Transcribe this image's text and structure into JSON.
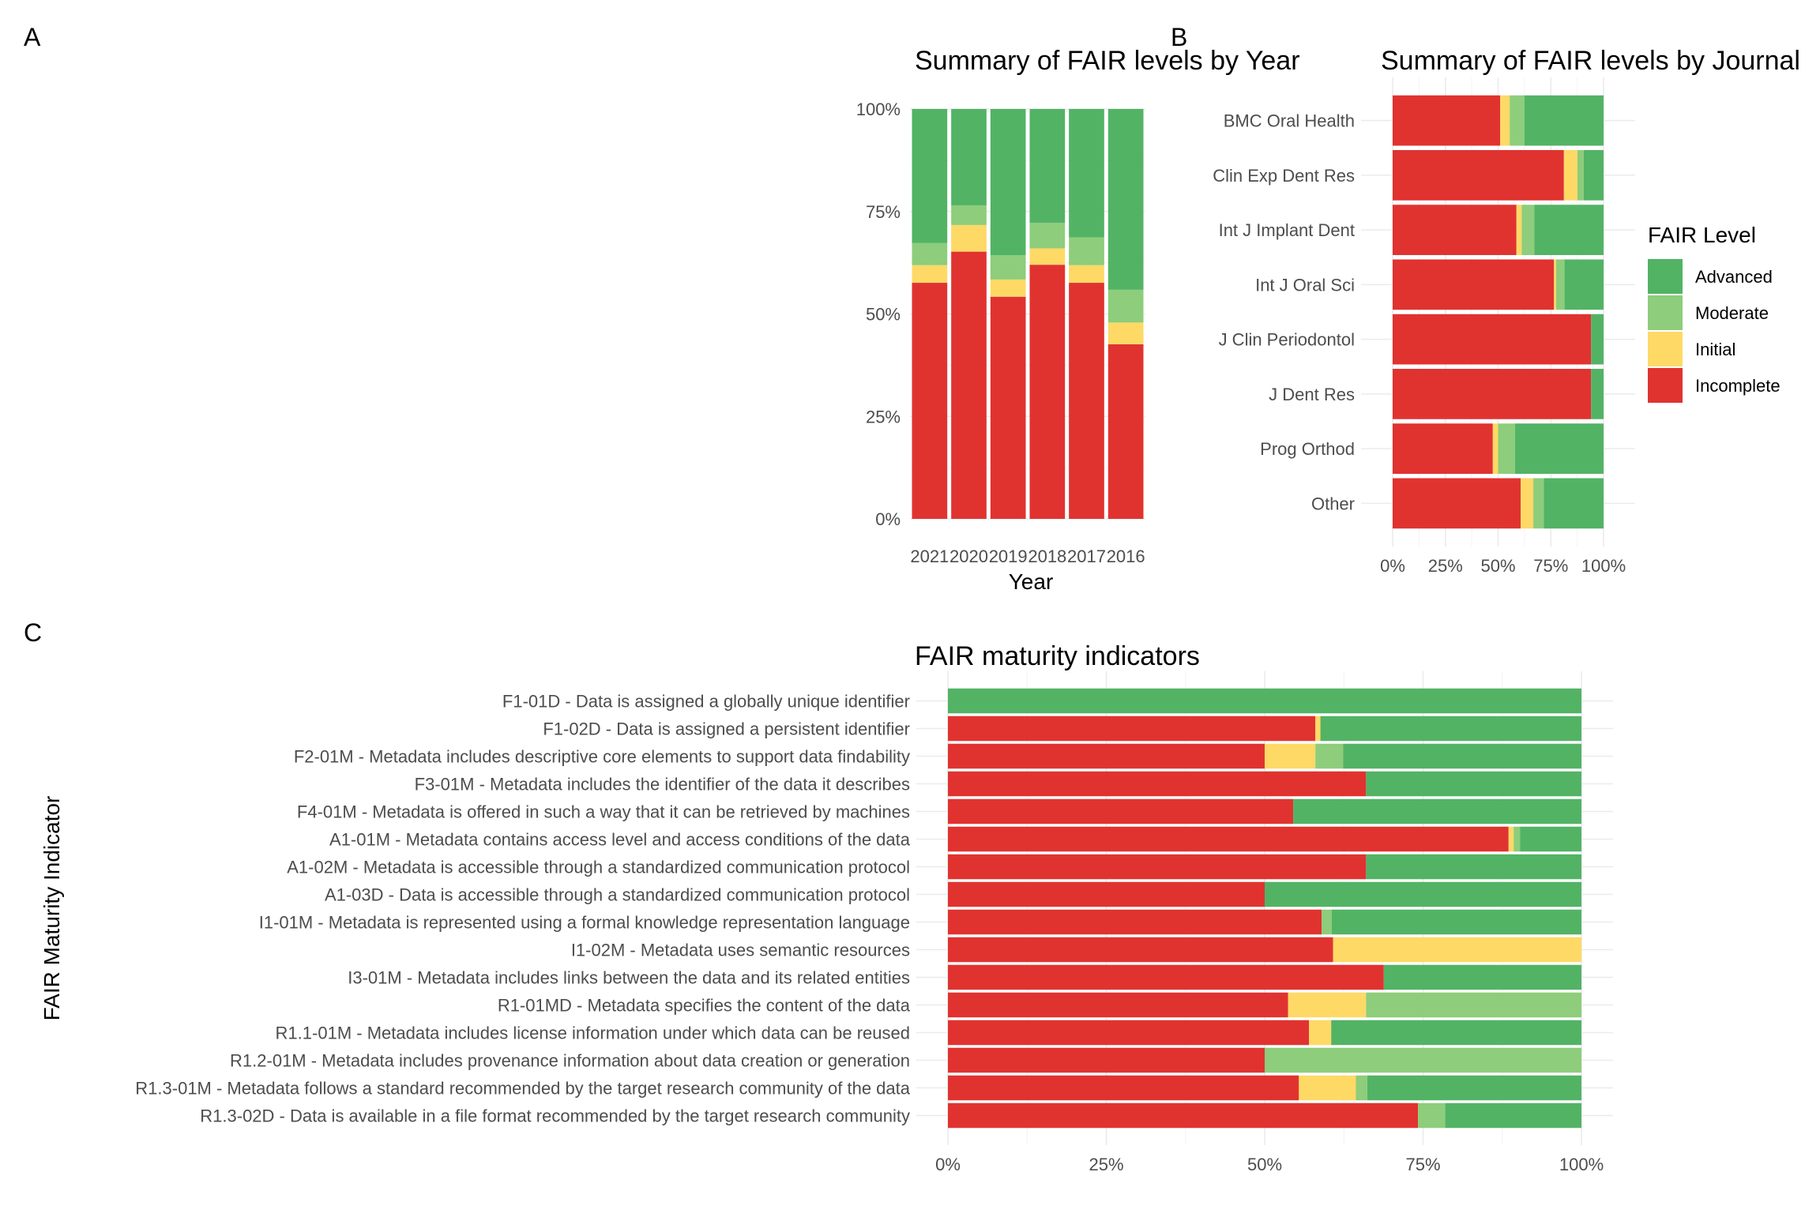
{
  "colors": {
    "Advanced": "#52B365",
    "Moderate": "#8DCD7B",
    "Initial": "#FED966",
    "Incomplete": "#E03330"
  },
  "legend": {
    "title": "FAIR Level",
    "items": [
      "Advanced",
      "Moderate",
      "Initial",
      "Incomplete"
    ]
  },
  "chart_data": [
    {
      "panel": "A",
      "type": "bar",
      "stacked": "percent",
      "orientation": "vertical",
      "title": "Summary of FAIR levels by Year",
      "xlabel": "Year",
      "ylabel": "",
      "categories": [
        "2021",
        "2020",
        "2019",
        "2018",
        "2017",
        "2016"
      ],
      "y_ticks": [
        "0%",
        "25%",
        "50%",
        "75%",
        "100%"
      ],
      "ylim": [
        0,
        1
      ],
      "series": [
        {
          "name": "Incomplete",
          "values": [
            0.576,
            0.652,
            0.542,
            0.62,
            0.576,
            0.426
          ]
        },
        {
          "name": "Initial",
          "values": [
            0.043,
            0.065,
            0.042,
            0.04,
            0.043,
            0.053
          ]
        },
        {
          "name": "Moderate",
          "values": [
            0.054,
            0.048,
            0.059,
            0.062,
            0.068,
            0.08
          ]
        },
        {
          "name": "Advanced",
          "values": [
            0.327,
            0.235,
            0.357,
            0.278,
            0.313,
            0.441
          ]
        }
      ]
    },
    {
      "panel": "B",
      "type": "bar",
      "stacked": "percent",
      "orientation": "horizontal",
      "title": "Summary of FAIR levels by Journal",
      "xlabel": "",
      "ylabel": "",
      "categories": [
        "BMC Oral Health",
        "Clin Exp Dent Res",
        "Int J Implant Dent",
        "Int J Oral Sci",
        "J Clin Periodontol",
        "J Dent Res",
        "Prog Orthod",
        "Other"
      ],
      "x_ticks": [
        "0%",
        "25%",
        "50%",
        "75%",
        "100%"
      ],
      "xlim": [
        0,
        1
      ],
      "series": [
        {
          "name": "Incomplete",
          "values": [
            0.51,
            0.812,
            0.587,
            0.765,
            0.941,
            0.941,
            0.475,
            0.607
          ]
        },
        {
          "name": "Initial",
          "values": [
            0.045,
            0.064,
            0.025,
            0.01,
            0.0,
            0.0,
            0.025,
            0.06
          ]
        },
        {
          "name": "Moderate",
          "values": [
            0.07,
            0.03,
            0.06,
            0.04,
            0.0,
            0.0,
            0.08,
            0.05
          ]
        },
        {
          "name": "Advanced",
          "values": [
            0.375,
            0.094,
            0.328,
            0.185,
            0.059,
            0.059,
            0.42,
            0.283
          ]
        }
      ]
    },
    {
      "panel": "C",
      "type": "bar",
      "stacked": "percent",
      "orientation": "horizontal",
      "title": "FAIR maturity indicators",
      "xlabel": "",
      "ylabel": "FAIR Maturity Indicator",
      "categories": [
        "F1-01D - Data is assigned a globally unique identifier",
        "F1-02D - Data is assigned a persistent identifier",
        "F2-01M - Metadata includes descriptive core elements to support data findability",
        "F3-01M - Metadata includes the identifier of the data it describes",
        "F4-01M - Metadata is offered in such a way that it can be retrieved by machines",
        "A1-01M - Metadata contains access level and access conditions of the data",
        "A1-02M - Metadata is accessible through a standardized communication protocol",
        "A1-03D - Data is accessible through a standardized communication protocol",
        "I1-01M - Metadata is represented using a formal knowledge representation language",
        "I1-02M - Metadata uses semantic resources",
        "I3-01M - Metadata includes links between the data and its related entities",
        "R1-01MD - Metadata specifies the content of the data",
        "R1.1-01M - Metadata includes license information under which data can be reused",
        "R1.2-01M - Metadata includes provenance information about data creation or generation",
        "R1.3-01M - Metadata follows a standard recommended by the target research community of the data",
        "R1.3-02D - Data is available in a file format recommended by the target research community"
      ],
      "x_ticks": [
        "0%",
        "25%",
        "50%",
        "75%",
        "100%"
      ],
      "xlim": [
        0,
        1
      ],
      "series": [
        {
          "name": "Incomplete",
          "values": [
            0.0,
            0.58,
            0.5,
            0.66,
            0.545,
            0.885,
            0.66,
            0.5,
            0.59,
            0.608,
            0.688,
            0.537,
            0.57,
            0.5,
            0.554,
            0.742
          ]
        },
        {
          "name": "Initial",
          "values": [
            0.0,
            0.008,
            0.08,
            0.0,
            0.0,
            0.008,
            0.0,
            0.0,
            0.0,
            0.392,
            0.0,
            0.123,
            0.035,
            0.0,
            0.09,
            0.0
          ]
        },
        {
          "name": "Moderate",
          "values": [
            0.0,
            0.0,
            0.044,
            0.0,
            0.0,
            0.01,
            0.0,
            0.0,
            0.016,
            0.0,
            0.0,
            0.34,
            0.0,
            0.5,
            0.018,
            0.043
          ]
        },
        {
          "name": "Advanced",
          "values": [
            1.0,
            0.412,
            0.376,
            0.34,
            0.455,
            0.097,
            0.34,
            0.5,
            0.394,
            0.0,
            0.312,
            0.0,
            0.395,
            0.0,
            0.338,
            0.215
          ]
        }
      ]
    }
  ]
}
